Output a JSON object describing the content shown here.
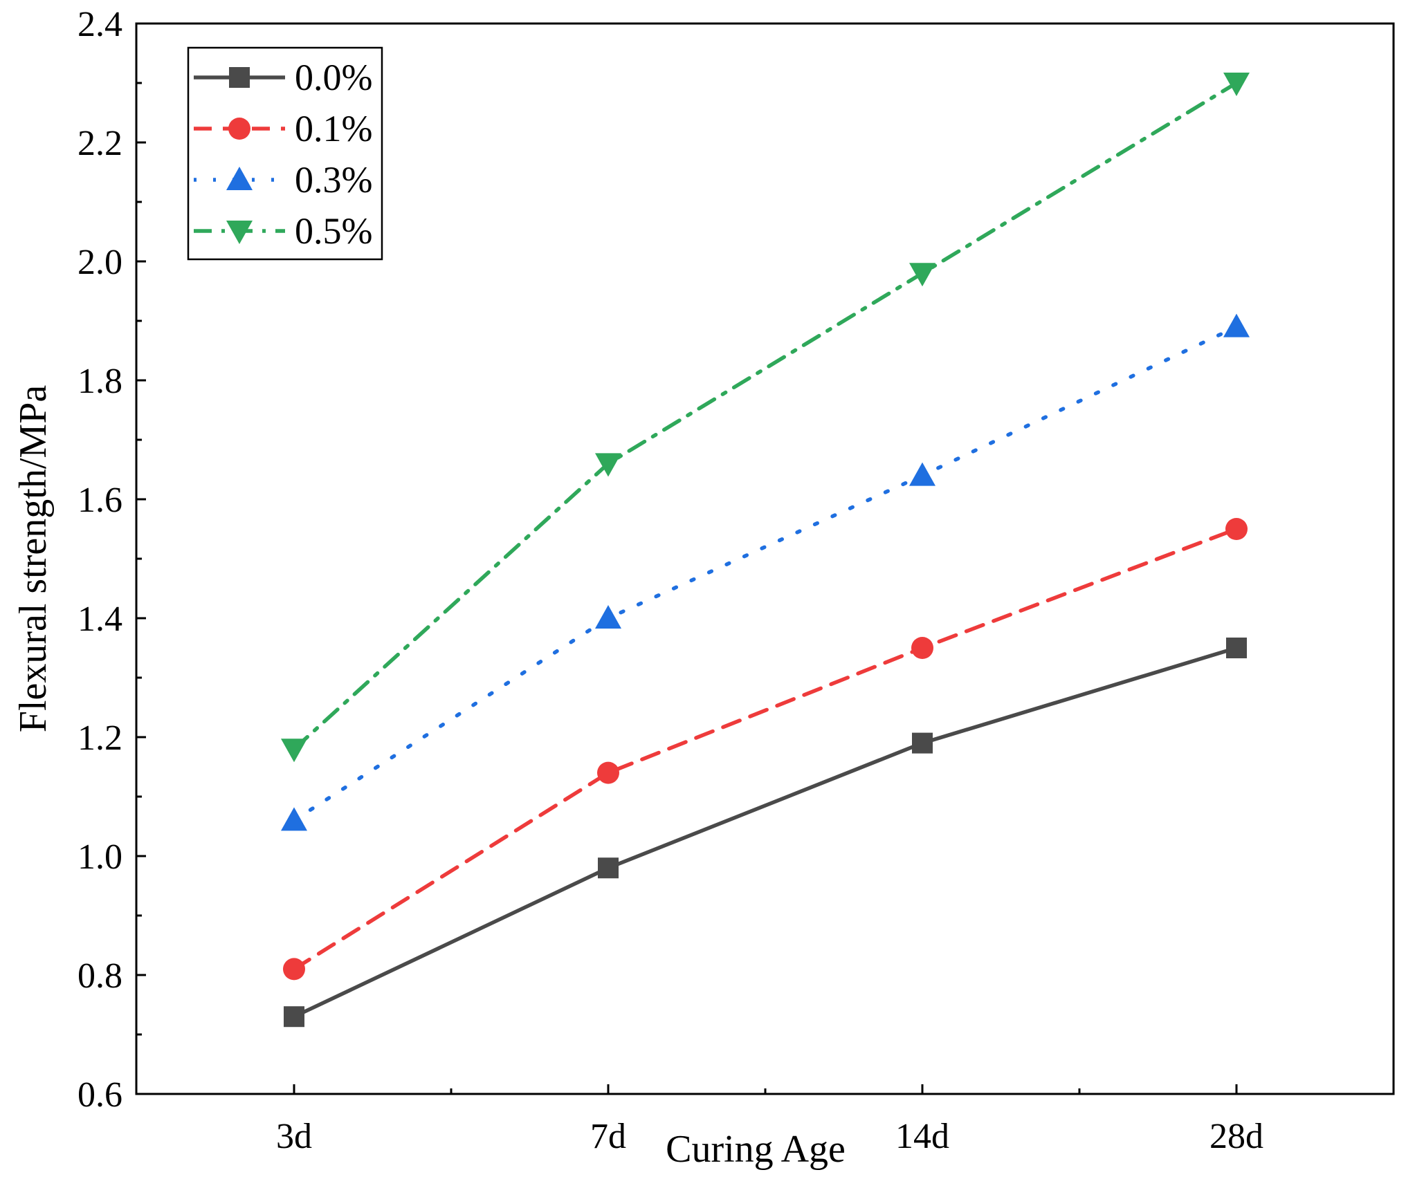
{
  "chart_data": {
    "type": "line",
    "title": "",
    "xlabel": "Curing Age",
    "ylabel": "Flexural strength/MPa",
    "categories": [
      "3d",
      "7d",
      "14d",
      "28d"
    ],
    "ylim": [
      0.6,
      2.4
    ],
    "yticks": [
      "0.6",
      "0.8",
      "1.0",
      "1.2",
      "1.4",
      "1.6",
      "1.8",
      "2.0",
      "2.2",
      "2.4"
    ],
    "legend_position": "top-left",
    "grid": false,
    "series": [
      {
        "name": "0.0%",
        "values": [
          0.73,
          0.98,
          1.19,
          1.35
        ],
        "color": "#4a4a4a",
        "marker": "square",
        "line_style": "solid"
      },
      {
        "name": "0.1%",
        "values": [
          0.81,
          1.14,
          1.35,
          1.55
        ],
        "color": "#ee3b3b",
        "marker": "circle",
        "line_style": "dashed"
      },
      {
        "name": "0.3%",
        "values": [
          1.06,
          1.4,
          1.64,
          1.89
        ],
        "color": "#1f6fe0",
        "marker": "triangle-up",
        "line_style": "dotted"
      },
      {
        "name": "0.5%",
        "values": [
          1.18,
          1.66,
          1.98,
          2.3
        ],
        "color": "#2fa85a",
        "marker": "triangle-down",
        "line_style": "dash-dot"
      }
    ]
  }
}
